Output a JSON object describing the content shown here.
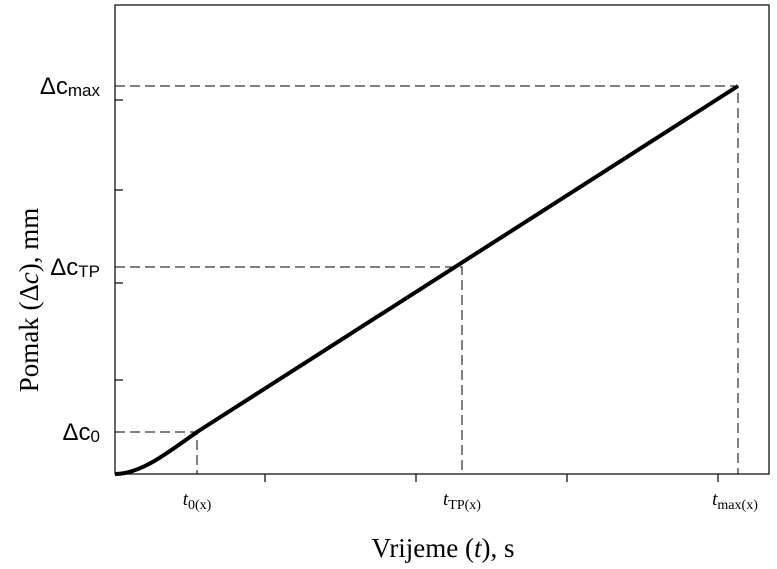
{
  "diagram": {
    "y_axis_label": [
      "Pomak (",
      "Δ",
      "c",
      "), mm"
    ],
    "x_axis_label": [
      "Vrijeme (",
      "t",
      "), s"
    ],
    "y_labels": [
      {
        "main": "Δc",
        "sub": "max"
      },
      {
        "main": "Δc",
        "sub": "TP"
      },
      {
        "main": "Δc",
        "sub": "0"
      }
    ],
    "x_labels": [
      {
        "main": "t",
        "sub": "0(x)"
      },
      {
        "main": "t",
        "sub": "TP(x)"
      },
      {
        "main": "t",
        "sub": "max(x)"
      }
    ]
  }
}
